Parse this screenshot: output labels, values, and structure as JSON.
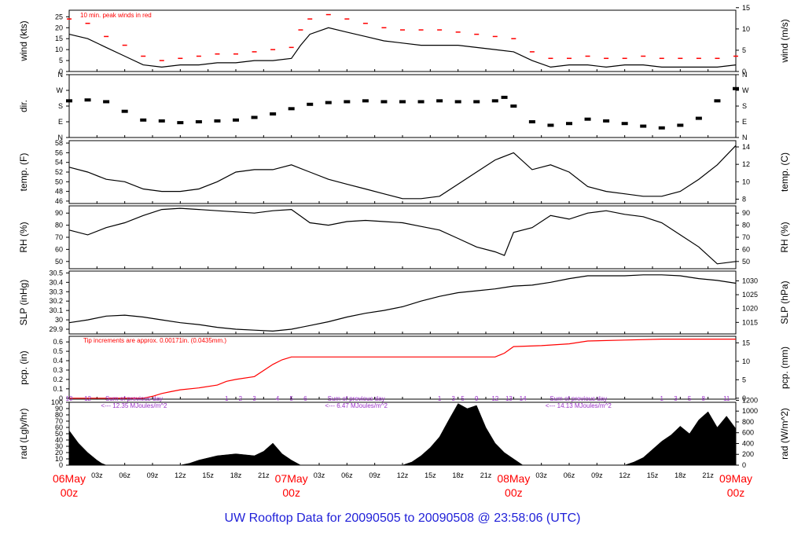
{
  "title": "UW Rooftop Data for 20090505  to  20090508 @ 23:58:06  (UTC)",
  "colors": {
    "series": "#000000",
    "peak": "#ff0000",
    "precip": "#ff0000",
    "solar_labels": "#9b30c8",
    "date_labels": "#ff0000",
    "title": "#1f1fd8"
  },
  "chart_data": [
    {
      "type": "line",
      "panel": "wind",
      "ylabel": "wind (kts)",
      "ylabel_right": "wind (m/s)",
      "ylim": [
        0,
        28
      ],
      "yticks": [
        0,
        5,
        10,
        15,
        20,
        25
      ],
      "yticks_right": [
        0,
        5,
        10,
        15
      ],
      "right_factor": 1.944,
      "annotation": "10 min. peak winds in red",
      "x": [
        0,
        2,
        4,
        6,
        8,
        10,
        12,
        14,
        16,
        18,
        20,
        22,
        24,
        25,
        26,
        28,
        30,
        32,
        34,
        36,
        38,
        40,
        42,
        44,
        46,
        48,
        50,
        52,
        54,
        56,
        58,
        60,
        62,
        64,
        66,
        68,
        70,
        72
      ],
      "series": [
        {
          "name": "wind",
          "values": [
            17,
            15,
            11,
            7,
            3,
            2,
            3,
            3,
            4,
            4,
            5,
            5,
            6,
            12,
            17,
            20,
            18,
            16,
            14,
            13,
            12,
            12,
            12,
            11,
            10,
            9,
            5,
            2,
            3,
            3,
            2,
            3,
            3,
            2,
            2,
            2,
            2,
            3
          ]
        },
        {
          "name": "peak",
          "values": [
            24,
            22,
            16,
            12,
            7,
            5,
            6,
            7,
            8,
            8,
            9,
            10,
            11,
            19,
            24,
            26,
            24,
            22,
            20,
            19,
            19,
            19,
            18,
            17,
            16,
            15,
            9,
            6,
            6,
            7,
            6,
            6,
            7,
            6,
            6,
            6,
            6,
            7
          ]
        }
      ]
    },
    {
      "type": "scatter",
      "panel": "dir",
      "ylabel": "dir.",
      "yticks": [
        "N",
        "E",
        "S",
        "W",
        "N"
      ],
      "ylim": [
        0,
        360
      ],
      "x": [
        0,
        2,
        4,
        6,
        8,
        10,
        12,
        14,
        16,
        18,
        20,
        22,
        24,
        26,
        28,
        30,
        32,
        34,
        36,
        38,
        40,
        42,
        44,
        46,
        47,
        48,
        50,
        52,
        54,
        56,
        58,
        60,
        62,
        64,
        66,
        68,
        70,
        72
      ],
      "values": [
        210,
        215,
        205,
        150,
        100,
        95,
        85,
        90,
        95,
        100,
        115,
        135,
        165,
        190,
        200,
        205,
        210,
        205,
        205,
        205,
        210,
        205,
        205,
        210,
        230,
        180,
        90,
        70,
        80,
        105,
        95,
        80,
        65,
        55,
        70,
        110,
        210,
        280
      ]
    },
    {
      "type": "line",
      "panel": "temp",
      "ylabel": "temp. (F)",
      "ylabel_right": "temp. (C)",
      "ylim": [
        45.5,
        58.5
      ],
      "yticks": [
        46,
        48,
        50,
        52,
        54,
        56,
        58
      ],
      "yticks_right": [
        8,
        10,
        12,
        14
      ],
      "x": [
        0,
        2,
        4,
        6,
        8,
        10,
        12,
        14,
        16,
        18,
        20,
        22,
        24,
        26,
        28,
        30,
        32,
        34,
        36,
        38,
        40,
        42,
        44,
        46,
        48,
        50,
        52,
        54,
        56,
        58,
        60,
        62,
        64,
        66,
        68,
        70,
        72
      ],
      "values": [
        53,
        52,
        50.5,
        50,
        48.5,
        48,
        48,
        48.5,
        50,
        52,
        52.5,
        52.5,
        53.5,
        52,
        50.5,
        49.5,
        48.5,
        47.5,
        46.5,
        46.5,
        47,
        49.5,
        52,
        54.5,
        56,
        52.5,
        53.5,
        52,
        49,
        48,
        47.5,
        47,
        47,
        48,
        50.5,
        53.5,
        57.5
      ]
    },
    {
      "type": "line",
      "panel": "rh",
      "ylabel": "RH (%)",
      "ylabel_right": "RH (%)",
      "ylim": [
        44,
        96
      ],
      "yticks": [
        50,
        60,
        70,
        80,
        90
      ],
      "x": [
        0,
        2,
        4,
        6,
        8,
        10,
        12,
        14,
        16,
        18,
        20,
        22,
        24,
        26,
        28,
        30,
        32,
        34,
        36,
        38,
        40,
        42,
        44,
        46,
        47,
        48,
        50,
        52,
        54,
        56,
        58,
        60,
        62,
        64,
        66,
        68,
        70,
        72
      ],
      "values": [
        76,
        72,
        78,
        82,
        88,
        93,
        94,
        93,
        92,
        91,
        90,
        92,
        93,
        82,
        80,
        83,
        84,
        83,
        82,
        79,
        76,
        69,
        62,
        58,
        55,
        74,
        78,
        88,
        85,
        90,
        92,
        89,
        87,
        82,
        72,
        62,
        48,
        50
      ]
    },
    {
      "type": "line",
      "panel": "slp",
      "ylabel": "SLP (inHg)",
      "ylabel_right": "SLP (hPa)",
      "ylim": [
        29.85,
        30.52
      ],
      "yticks": [
        29.9,
        30.0,
        30.1,
        30.2,
        30.3,
        30.4,
        30.5
      ],
      "yticks_right": [
        1015,
        1020,
        1025,
        1030
      ],
      "x": [
        0,
        2,
        4,
        6,
        8,
        10,
        12,
        14,
        16,
        18,
        20,
        22,
        24,
        26,
        28,
        30,
        32,
        34,
        36,
        38,
        40,
        42,
        44,
        46,
        48,
        50,
        52,
        54,
        56,
        58,
        60,
        62,
        64,
        66,
        68,
        70,
        72
      ],
      "values": [
        29.97,
        30.0,
        30.04,
        30.05,
        30.03,
        30.0,
        29.97,
        29.95,
        29.92,
        29.9,
        29.89,
        29.88,
        29.9,
        29.94,
        29.98,
        30.03,
        30.07,
        30.1,
        30.14,
        30.2,
        30.25,
        30.29,
        30.31,
        30.33,
        30.36,
        30.37,
        30.4,
        30.44,
        30.47,
        30.47,
        30.47,
        30.48,
        30.48,
        30.47,
        30.44,
        30.42,
        30.39
      ]
    },
    {
      "type": "line",
      "panel": "pcp",
      "ylabel": "pcp. (in)",
      "ylabel_right": "pcp. (mm)",
      "ylim": [
        -0.01,
        0.66
      ],
      "yticks": [
        0,
        0.1,
        0.2,
        0.3,
        0.4,
        0.5,
        0.6
      ],
      "yticks_right": [
        0,
        5,
        10,
        15
      ],
      "annotation": "Tip increments are approx. 0.00171in. (0.0435mm.)",
      "x": [
        0,
        8,
        9,
        10,
        11,
        12,
        14,
        16,
        17,
        18,
        20,
        22,
        23,
        24,
        46,
        47,
        48,
        51,
        54,
        56,
        60,
        64,
        68,
        72
      ],
      "values": [
        0,
        0,
        0.02,
        0.05,
        0.07,
        0.09,
        0.11,
        0.14,
        0.18,
        0.2,
        0.23,
        0.36,
        0.41,
        0.44,
        0.44,
        0.48,
        0.55,
        0.56,
        0.58,
        0.61,
        0.62,
        0.63,
        0.63,
        0.63
      ]
    },
    {
      "type": "area",
      "panel": "rad",
      "ylabel": "rad (Lgly/hr)",
      "ylabel_right": "rad (W/m^2)",
      "ylim": [
        0,
        100
      ],
      "yticks": [
        0,
        10,
        20,
        30,
        40,
        50,
        60,
        70,
        80,
        90,
        100
      ],
      "yticks_right": [
        0,
        200,
        400,
        600,
        800,
        1000,
        1200
      ],
      "x": [
        0,
        1,
        2,
        3,
        3.5,
        4,
        12,
        13,
        14,
        16,
        18,
        20,
        21,
        22,
        23,
        24,
        25,
        36,
        37,
        38,
        39,
        40,
        41,
        42,
        43,
        44,
        45,
        46,
        47,
        48,
        49,
        60,
        61,
        62,
        63,
        64,
        65,
        66,
        67,
        68,
        69,
        70,
        71,
        72
      ],
      "values": [
        55,
        35,
        20,
        8,
        3,
        0,
        0,
        3,
        8,
        15,
        18,
        15,
        22,
        35,
        18,
        8,
        0,
        0,
        5,
        15,
        28,
        45,
        72,
        98,
        90,
        95,
        60,
        35,
        20,
        10,
        0,
        0,
        5,
        12,
        25,
        38,
        48,
        62,
        50,
        72,
        85,
        60,
        78,
        58
      ],
      "hour_labels": [
        {
          "x": 0,
          "t": "10"
        },
        {
          "x": 2,
          "t": "12"
        },
        {
          "x": 17,
          "t": "1"
        },
        {
          "x": 18.5,
          "t": "2"
        },
        {
          "x": 20,
          "t": "3"
        },
        {
          "x": 22.5,
          "t": "4"
        },
        {
          "x": 24,
          "t": "5"
        },
        {
          "x": 25.5,
          "t": "6"
        },
        {
          "x": 40,
          "t": "1"
        },
        {
          "x": 41.5,
          "t": "3"
        },
        {
          "x": 42.5,
          "t": "5"
        },
        {
          "x": 44,
          "t": "9"
        },
        {
          "x": 46,
          "t": "12"
        },
        {
          "x": 47.5,
          "t": "13"
        },
        {
          "x": 49,
          "t": "14"
        },
        {
          "x": 64,
          "t": "1"
        },
        {
          "x": 65.5,
          "t": "3"
        },
        {
          "x": 67,
          "t": "5"
        },
        {
          "x": 68.5,
          "t": "8"
        },
        {
          "x": 71,
          "t": "11"
        }
      ],
      "daily_sums": [
        {
          "x": 7,
          "label": "Sum of previous day",
          "value": "<--- 12.35 MJoules/m^2"
        },
        {
          "x": 31,
          "label": "Sum of previous day",
          "value": "<--- 6.47 MJoules/m^2"
        },
        {
          "x": 55,
          "label": "Sum of previous day",
          "value": "<--- 14.13 MJoules/m^2"
        }
      ]
    }
  ],
  "x_axis": {
    "hours": [
      "03z",
      "06z",
      "09z",
      "12z",
      "15z",
      "18z",
      "21z",
      "03z",
      "06z",
      "09z",
      "12z",
      "15z",
      "18z",
      "21z",
      "03z",
      "06z",
      "09z",
      "12z",
      "15z",
      "18z",
      "21z"
    ],
    "dates": [
      {
        "day": "06May",
        "time": "00z"
      },
      {
        "day": "07May",
        "time": "00z"
      },
      {
        "day": "08May",
        "time": "00z"
      },
      {
        "day": "09May",
        "time": "00z"
      }
    ]
  }
}
